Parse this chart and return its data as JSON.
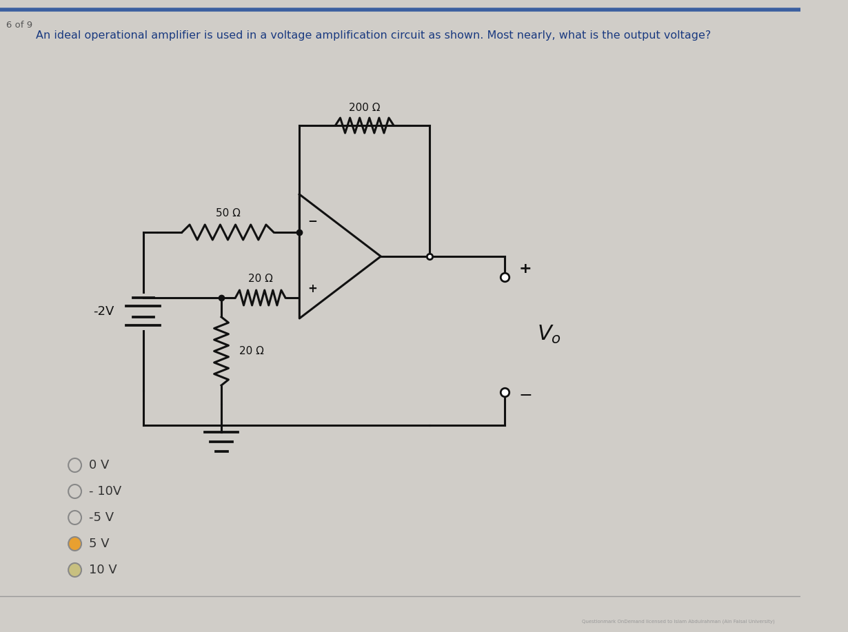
{
  "page_label": "6 of 9",
  "question_text": "An ideal operational amplifier is used in a voltage amplification circuit as shown. Most nearly, what is the output voltage?",
  "bg_color": "#d0cdc8",
  "circuit_color": "#111111",
  "blue_line_color": "#3a5fa0",
  "answer_choices": [
    "0 V",
    "- 10V",
    "-5 V",
    "5 V",
    "10 V"
  ],
  "selected_answers": [
    3,
    4
  ],
  "r200_label": "200 Ω",
  "r50_label": "50 Ω",
  "r20t_label": "20 Ω",
  "r20b_label": "20 Ω",
  "voltage_label": "-2V",
  "lw": 2.2,
  "radio_colors": [
    "#aaaaaa",
    "#aaaaaa",
    "#aaaaaa",
    "#e8a030",
    "#c8c080"
  ]
}
